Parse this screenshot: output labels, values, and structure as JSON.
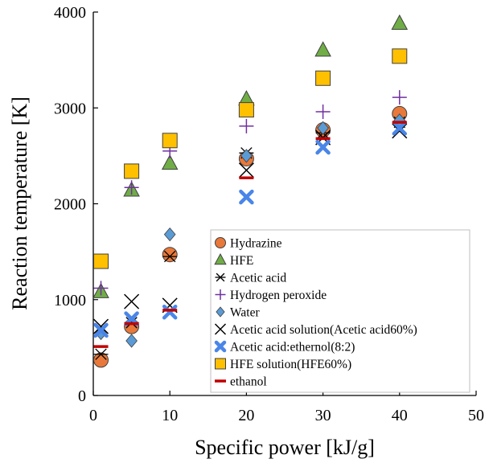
{
  "chart_data": {
    "type": "scatter",
    "title": "",
    "xlabel": "Specific power [kJ/g]",
    "ylabel": "Reaction temperature [K]",
    "xlim": [
      0,
      50
    ],
    "ylim": [
      0,
      4000
    ],
    "xticks": [
      0,
      10,
      20,
      30,
      40,
      50
    ],
    "yticks": [
      0,
      1000,
      2000,
      3000,
      4000
    ],
    "grid": false,
    "legend_position": "lower-right",
    "series": [
      {
        "name": "Hydrazine",
        "marker": "circle",
        "color": "#E8793A",
        "x": [
          1,
          5,
          10,
          20,
          30,
          40
        ],
        "y": [
          370,
          720,
          1470,
          2470,
          2770,
          2940
        ]
      },
      {
        "name": "HFE",
        "marker": "triangle",
        "color": "#70AD47",
        "x": [
          1,
          5,
          10,
          20,
          30,
          40
        ],
        "y": [
          1080,
          2140,
          2420,
          3090,
          3600,
          3880
        ]
      },
      {
        "name": "Acetic acid",
        "marker": "asterisk",
        "color": "#000000",
        "x": [
          1,
          5,
          10,
          20,
          30,
          40
        ],
        "y": [
          430,
          760,
          1450,
          2530,
          2740,
          2850
        ]
      },
      {
        "name": "Hydrogen peroxide",
        "marker": "plus",
        "color": "#7030A0",
        "x": [
          1,
          5,
          10,
          20,
          30,
          40
        ],
        "y": [
          1120,
          2170,
          2550,
          2810,
          2960,
          3110
        ]
      },
      {
        "name": "Water",
        "marker": "diamond",
        "color": "#5B9BD5",
        "x": [
          1,
          5,
          10,
          20,
          30,
          40
        ],
        "y": [
          650,
          570,
          1680,
          2500,
          2790,
          2870
        ]
      },
      {
        "name": "Acetic acid solution(Acetic acid60%)",
        "marker": "x",
        "color": "#000000",
        "x": [
          1,
          5,
          10,
          20,
          30,
          40
        ],
        "y": [
          720,
          980,
          940,
          2350,
          2690,
          2760
        ]
      },
      {
        "name": "Acetic acid:ethernol(8:2)",
        "marker": "bigx",
        "color": "#4A86E8",
        "x": [
          1,
          5,
          10,
          20,
          30,
          40
        ],
        "y": [
          680,
          800,
          870,
          2070,
          2590,
          2790
        ]
      },
      {
        "name": "HFE solution(HFE60%)",
        "marker": "square",
        "color": "#FFC000",
        "x": [
          1,
          5,
          10,
          20,
          30,
          40
        ],
        "y": [
          1400,
          2340,
          2660,
          2980,
          3310,
          3540
        ]
      },
      {
        "name": "ethanol",
        "marker": "dash",
        "color": "#C00000",
        "x": [
          1,
          5,
          10,
          20,
          30,
          40
        ],
        "y": [
          510,
          750,
          890,
          2270,
          2680,
          2850
        ]
      }
    ]
  }
}
